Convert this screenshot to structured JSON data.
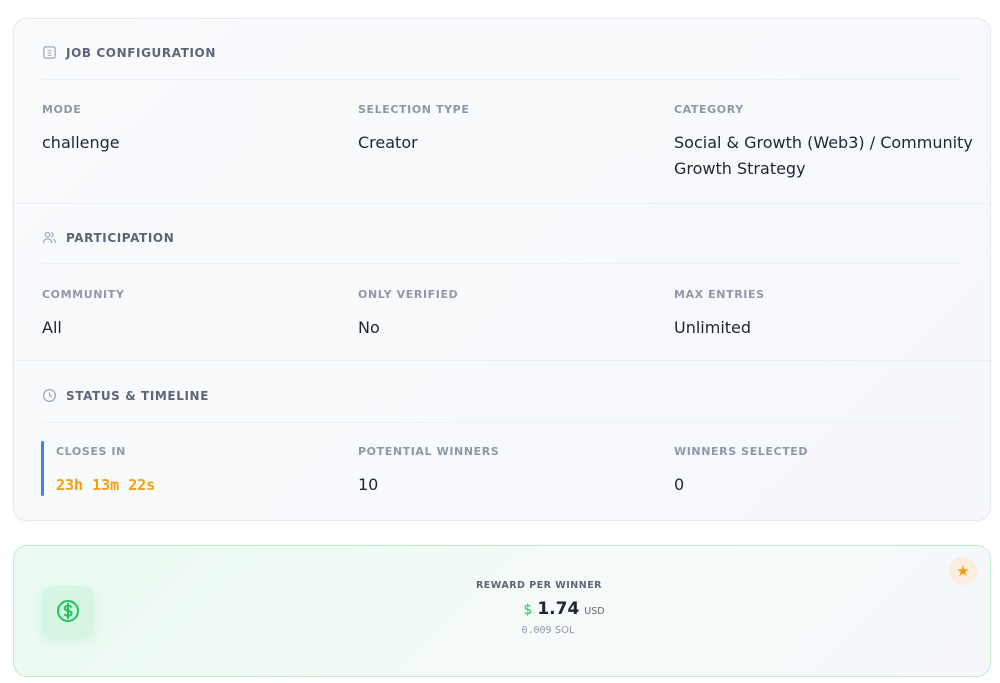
{
  "job_configuration": {
    "title": "JOB CONFIGURATION",
    "fields": [
      {
        "label": "MODE",
        "value": "challenge"
      },
      {
        "label": "SELECTION TYPE",
        "value": "Creator"
      },
      {
        "label": "CATEGORY",
        "value": "Social & Growth (Web3) / Community Growth Strategy"
      }
    ]
  },
  "participation": {
    "title": "PARTICIPATION",
    "fields": [
      {
        "label": "COMMUNITY",
        "value": "All"
      },
      {
        "label": "ONLY VERIFIED",
        "value": "No"
      },
      {
        "label": "MAX ENTRIES",
        "value": "Unlimited"
      }
    ]
  },
  "status": {
    "title": "STATUS & TIMELINE",
    "fields": [
      {
        "label": "CLOSES IN",
        "value": "23h 13m 22s"
      },
      {
        "label": "POTENTIAL WINNERS",
        "value": "10"
      },
      {
        "label": "WINNERS SELECTED",
        "value": "0"
      }
    ]
  },
  "reward": {
    "label": "REWARD PER WINNER",
    "currency_symbol": "$",
    "amount": "1.74",
    "currency": "USD",
    "sol_amount": "0.009",
    "sol_unit": "SOL"
  },
  "colors": {
    "accent": "#3b82f6",
    "timer": "#f59e0b",
    "money": "#22c55e"
  }
}
